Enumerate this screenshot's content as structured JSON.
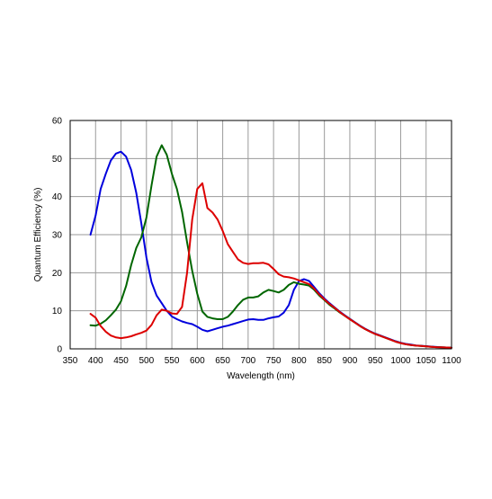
{
  "chart_data": {
    "type": "line",
    "xlabel": "Wavelength (nm)",
    "ylabel": "Quantum Efficiency (%)",
    "xlim": [
      350,
      1100
    ],
    "ylim": [
      0,
      60
    ],
    "x_ticks": [
      350,
      400,
      450,
      500,
      550,
      600,
      650,
      700,
      750,
      800,
      850,
      900,
      950,
      1000,
      1050,
      1100
    ],
    "y_ticks": [
      0,
      10,
      20,
      30,
      40,
      50,
      60
    ],
    "grid": true,
    "legend": "none",
    "series": [
      {
        "color": "#0000dd",
        "points": [
          [
            390,
            30
          ],
          [
            400,
            35
          ],
          [
            410,
            42
          ],
          [
            420,
            46
          ],
          [
            430,
            49.5
          ],
          [
            440,
            51.3
          ],
          [
            450,
            51.8
          ],
          [
            460,
            50.5
          ],
          [
            470,
            47
          ],
          [
            480,
            41
          ],
          [
            490,
            33
          ],
          [
            500,
            24
          ],
          [
            510,
            17.5
          ],
          [
            520,
            14
          ],
          [
            530,
            12
          ],
          [
            540,
            10
          ],
          [
            550,
            8.5
          ],
          [
            560,
            7.8
          ],
          [
            570,
            7.2
          ],
          [
            580,
            6.8
          ],
          [
            590,
            6.5
          ],
          [
            600,
            5.8
          ],
          [
            610,
            5
          ],
          [
            620,
            4.6
          ],
          [
            630,
            5
          ],
          [
            640,
            5.4
          ],
          [
            650,
            5.8
          ],
          [
            660,
            6.1
          ],
          [
            670,
            6.5
          ],
          [
            680,
            6.9
          ],
          [
            690,
            7.3
          ],
          [
            700,
            7.7
          ],
          [
            710,
            7.8
          ],
          [
            720,
            7.6
          ],
          [
            730,
            7.6
          ],
          [
            740,
            8
          ],
          [
            750,
            8.3
          ],
          [
            760,
            8.5
          ],
          [
            770,
            9.5
          ],
          [
            780,
            11.5
          ],
          [
            790,
            15.5
          ],
          [
            800,
            17.8
          ],
          [
            810,
            18.3
          ],
          [
            820,
            17.8
          ],
          [
            830,
            16.2
          ],
          [
            840,
            14.6
          ],
          [
            850,
            13.2
          ],
          [
            860,
            12
          ],
          [
            870,
            10.9
          ],
          [
            880,
            9.8
          ],
          [
            890,
            8.8
          ],
          [
            900,
            7.9
          ],
          [
            910,
            7
          ],
          [
            920,
            6.1
          ],
          [
            930,
            5.3
          ],
          [
            940,
            4.6
          ],
          [
            950,
            4
          ],
          [
            960,
            3.5
          ],
          [
            970,
            3
          ],
          [
            980,
            2.5
          ],
          [
            990,
            2
          ],
          [
            1000,
            1.6
          ],
          [
            1010,
            1.3
          ],
          [
            1020,
            1.1
          ],
          [
            1030,
            0.9
          ],
          [
            1040,
            0.8
          ],
          [
            1050,
            0.7
          ],
          [
            1060,
            0.6
          ],
          [
            1070,
            0.5
          ],
          [
            1080,
            0.4
          ],
          [
            1090,
            0.35
          ],
          [
            1100,
            0.3
          ]
        ]
      },
      {
        "color": "#006600",
        "points": [
          [
            390,
            6.2
          ],
          [
            400,
            6.1
          ],
          [
            410,
            6.6
          ],
          [
            420,
            7.5
          ],
          [
            430,
            8.8
          ],
          [
            440,
            10.3
          ],
          [
            450,
            12.5
          ],
          [
            460,
            16.5
          ],
          [
            470,
            22
          ],
          [
            480,
            26.5
          ],
          [
            490,
            29.3
          ],
          [
            500,
            34.5
          ],
          [
            510,
            43
          ],
          [
            520,
            50.5
          ],
          [
            530,
            53.5
          ],
          [
            540,
            51
          ],
          [
            550,
            46
          ],
          [
            560,
            42
          ],
          [
            570,
            36
          ],
          [
            580,
            28
          ],
          [
            590,
            20.5
          ],
          [
            600,
            14.5
          ],
          [
            610,
            9.8
          ],
          [
            620,
            8.4
          ],
          [
            630,
            8
          ],
          [
            640,
            7.8
          ],
          [
            650,
            7.8
          ],
          [
            660,
            8.4
          ],
          [
            670,
            9.8
          ],
          [
            680,
            11.5
          ],
          [
            690,
            12.9
          ],
          [
            700,
            13.5
          ],
          [
            710,
            13.5
          ],
          [
            720,
            13.8
          ],
          [
            730,
            14.8
          ],
          [
            740,
            15.5
          ],
          [
            750,
            15.2
          ],
          [
            760,
            14.8
          ],
          [
            770,
            15.5
          ],
          [
            780,
            16.8
          ],
          [
            790,
            17.5
          ],
          [
            800,
            17.1
          ],
          [
            810,
            16.9
          ],
          [
            820,
            16.6
          ],
          [
            830,
            15.5
          ],
          [
            840,
            14
          ],
          [
            850,
            12.8
          ],
          [
            860,
            11.6
          ],
          [
            870,
            10.6
          ],
          [
            880,
            9.6
          ],
          [
            890,
            8.7
          ],
          [
            900,
            7.8
          ],
          [
            910,
            6.9
          ],
          [
            920,
            6
          ],
          [
            930,
            5.2
          ],
          [
            940,
            4.5
          ],
          [
            950,
            3.9
          ],
          [
            960,
            3.4
          ],
          [
            970,
            2.9
          ],
          [
            980,
            2.4
          ],
          [
            990,
            1.9
          ],
          [
            1000,
            1.5
          ],
          [
            1010,
            1.2
          ],
          [
            1020,
            1
          ],
          [
            1030,
            0.85
          ],
          [
            1040,
            0.75
          ],
          [
            1050,
            0.65
          ],
          [
            1060,
            0.55
          ],
          [
            1070,
            0.45
          ],
          [
            1080,
            0.4
          ],
          [
            1090,
            0.35
          ],
          [
            1100,
            0.3
          ]
        ]
      },
      {
        "color": "#dd0000",
        "points": [
          [
            390,
            9.2
          ],
          [
            400,
            8.2
          ],
          [
            410,
            6
          ],
          [
            420,
            4.5
          ],
          [
            430,
            3.5
          ],
          [
            440,
            3
          ],
          [
            450,
            2.8
          ],
          [
            460,
            3
          ],
          [
            470,
            3.3
          ],
          [
            480,
            3.8
          ],
          [
            490,
            4.2
          ],
          [
            500,
            4.8
          ],
          [
            510,
            6.3
          ],
          [
            520,
            8.8
          ],
          [
            530,
            10.3
          ],
          [
            540,
            10
          ],
          [
            550,
            9.3
          ],
          [
            560,
            9.2
          ],
          [
            570,
            11
          ],
          [
            580,
            20
          ],
          [
            590,
            34
          ],
          [
            600,
            42
          ],
          [
            610,
            43.5
          ],
          [
            620,
            37
          ],
          [
            630,
            35.8
          ],
          [
            640,
            34
          ],
          [
            650,
            31
          ],
          [
            660,
            27.5
          ],
          [
            670,
            25.5
          ],
          [
            680,
            23.5
          ],
          [
            690,
            22.6
          ],
          [
            700,
            22.3
          ],
          [
            710,
            22.5
          ],
          [
            720,
            22.5
          ],
          [
            730,
            22.6
          ],
          [
            740,
            22.2
          ],
          [
            750,
            21
          ],
          [
            760,
            19.6
          ],
          [
            770,
            19
          ],
          [
            780,
            18.8
          ],
          [
            790,
            18.5
          ],
          [
            800,
            18
          ],
          [
            810,
            17.5
          ],
          [
            820,
            17
          ],
          [
            830,
            15.8
          ],
          [
            840,
            14.3
          ],
          [
            850,
            13
          ],
          [
            860,
            11.8
          ],
          [
            870,
            10.8
          ],
          [
            880,
            9.7
          ],
          [
            890,
            8.7
          ],
          [
            900,
            7.8
          ],
          [
            910,
            6.9
          ],
          [
            920,
            6
          ],
          [
            930,
            5.2
          ],
          [
            940,
            4.5
          ],
          [
            950,
            3.9
          ],
          [
            960,
            3.4
          ],
          [
            970,
            2.9
          ],
          [
            980,
            2.4
          ],
          [
            990,
            1.9
          ],
          [
            1000,
            1.5
          ],
          [
            1010,
            1.2
          ],
          [
            1020,
            1
          ],
          [
            1030,
            0.85
          ],
          [
            1040,
            0.75
          ],
          [
            1050,
            0.65
          ],
          [
            1060,
            0.55
          ],
          [
            1070,
            0.45
          ],
          [
            1080,
            0.4
          ],
          [
            1090,
            0.35
          ],
          [
            1100,
            0.3
          ]
        ]
      }
    ]
  }
}
